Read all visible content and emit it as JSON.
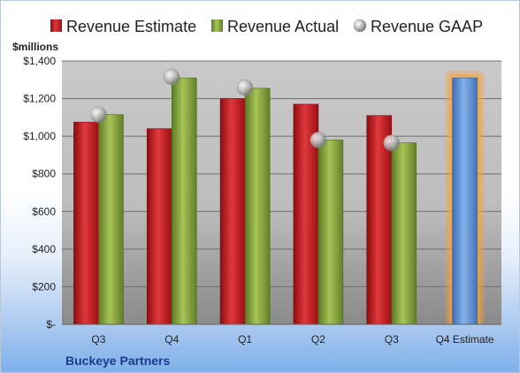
{
  "chart_data": {
    "type": "bar",
    "title": "",
    "unit_label": "$millions",
    "footer_label": "Buckeye Partners",
    "categories": [
      "Q3",
      "Q4",
      "Q1",
      "Q2",
      "Q3",
      "Q4 Estimate"
    ],
    "ylim": [
      0,
      1400
    ],
    "yticks": [
      {
        "value": 0,
        "label": "$-"
      },
      {
        "value": 200,
        "label": "$200"
      },
      {
        "value": 400,
        "label": "$400"
      },
      {
        "value": 600,
        "label": "$600"
      },
      {
        "value": 800,
        "label": "$800"
      },
      {
        "value": 1000,
        "label": "$1,000"
      },
      {
        "value": 1200,
        "label": "$1,200"
      },
      {
        "value": 1400,
        "label": "$1,400"
      }
    ],
    "grid": true,
    "legend_position": "top",
    "series": [
      {
        "name": "Revenue Estimate",
        "kind": "bar",
        "color": "#c9161d",
        "values": [
          1075,
          1040,
          1200,
          1170,
          1110,
          null
        ]
      },
      {
        "name": "Revenue Actual",
        "kind": "bar",
        "color": "#86a83a",
        "values": [
          1115,
          1310,
          1255,
          980,
          965,
          null
        ]
      },
      {
        "name": "Revenue GAAP",
        "kind": "marker",
        "color": "#b9b9b9",
        "values": [
          1115,
          1315,
          1258,
          980,
          965,
          null
        ]
      }
    ],
    "estimate_bar": {
      "category": "Q4 Estimate",
      "value": 1310,
      "color": "#5b8fd6",
      "glow": "#f5a33a"
    }
  }
}
